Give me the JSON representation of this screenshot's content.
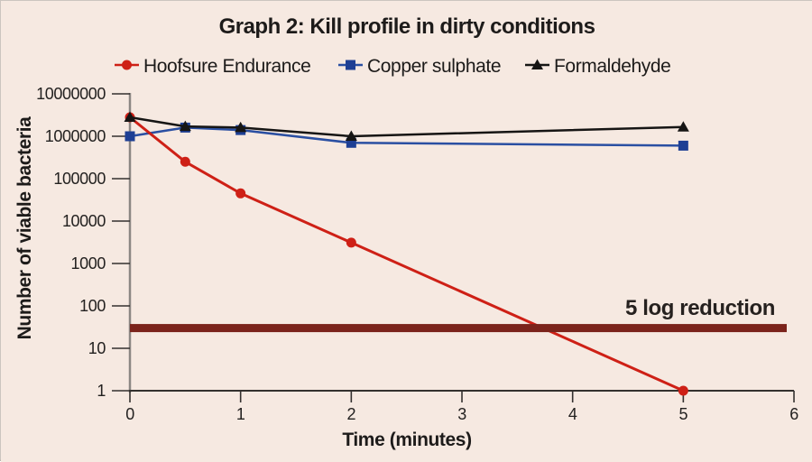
{
  "page": {
    "background": "#f6e9e1",
    "border_color": "#ccc5bf"
  },
  "chart_data": {
    "type": "line",
    "title": "Graph 2: Kill profile in dirty conditions",
    "xlabel": "Time (minutes)",
    "ylabel": "Number of viable bacteria",
    "x_scale": "linear",
    "y_scale": "log",
    "xlim": [
      0,
      6
    ],
    "ylim": [
      1,
      10000000
    ],
    "x_ticks": [
      0,
      1,
      2,
      3,
      4,
      5,
      6
    ],
    "y_ticks": [
      10000000,
      1000000,
      100000,
      10000,
      1000,
      100,
      10,
      1
    ],
    "grid": false,
    "legend_position": "top",
    "axis_colors": {
      "y_axis": "#8b8783",
      "x_axis": "#34312f",
      "ticks": "#34312f"
    },
    "series": [
      {
        "name": "Hoofsure Endurance",
        "color": "#ce2016",
        "marker": "circle",
        "x": [
          0,
          0.5,
          1,
          2,
          5
        ],
        "y": [
          2800000,
          250000,
          45000,
          3100,
          1
        ]
      },
      {
        "name": "Copper sulphate",
        "color": "#2a4fa2",
        "marker": "square",
        "marker_color": "#1e3f94",
        "x": [
          0,
          0.5,
          1,
          2,
          5
        ],
        "y": [
          1000000,
          1600000,
          1400000,
          700000,
          600000
        ]
      },
      {
        "name": "Formaldehyde",
        "color": "#161514",
        "marker": "triangle",
        "x": [
          0,
          0.5,
          1,
          2,
          5
        ],
        "y": [
          2800000,
          1700000,
          1600000,
          1000000,
          1650000
        ]
      }
    ],
    "reference_line": {
      "label": "5 log reduction",
      "value": 30,
      "color": "#7b231b"
    }
  }
}
